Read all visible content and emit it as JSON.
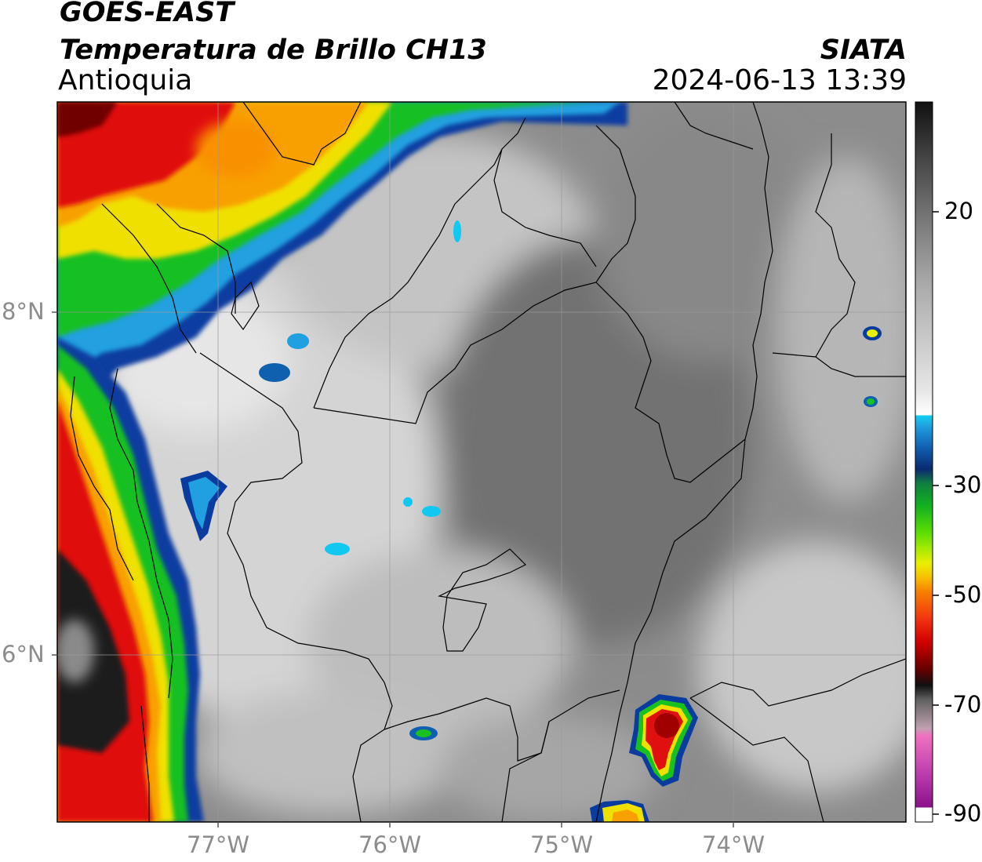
{
  "header": {
    "satellite": "GOES-EAST",
    "product": "Temperatura de Brillo CH13",
    "region": "Antioquia",
    "organization": "SIATA",
    "datetime": "2024-06-13 13:39"
  },
  "map": {
    "lat_labels": [
      "8°N",
      "6°N"
    ],
    "lon_labels": [
      "77°W",
      "76°W",
      "75°W",
      "74°W"
    ],
    "gridlines": true
  },
  "colorbar": {
    "ticks": [
      "20",
      "-30",
      "-50",
      "-70",
      "-90"
    ],
    "colors": {
      "gray_warm": "#7a7a7a",
      "white": "#ffffff",
      "cyan": "#00c8f0",
      "blue": "#0a3ca0",
      "green": "#18c020",
      "yellow": "#f0e000",
      "orange": "#f8a000",
      "red": "#e01010",
      "darkred": "#700000",
      "black": "#101010",
      "pink": "#f070c0",
      "purple": "#a020a0"
    }
  }
}
